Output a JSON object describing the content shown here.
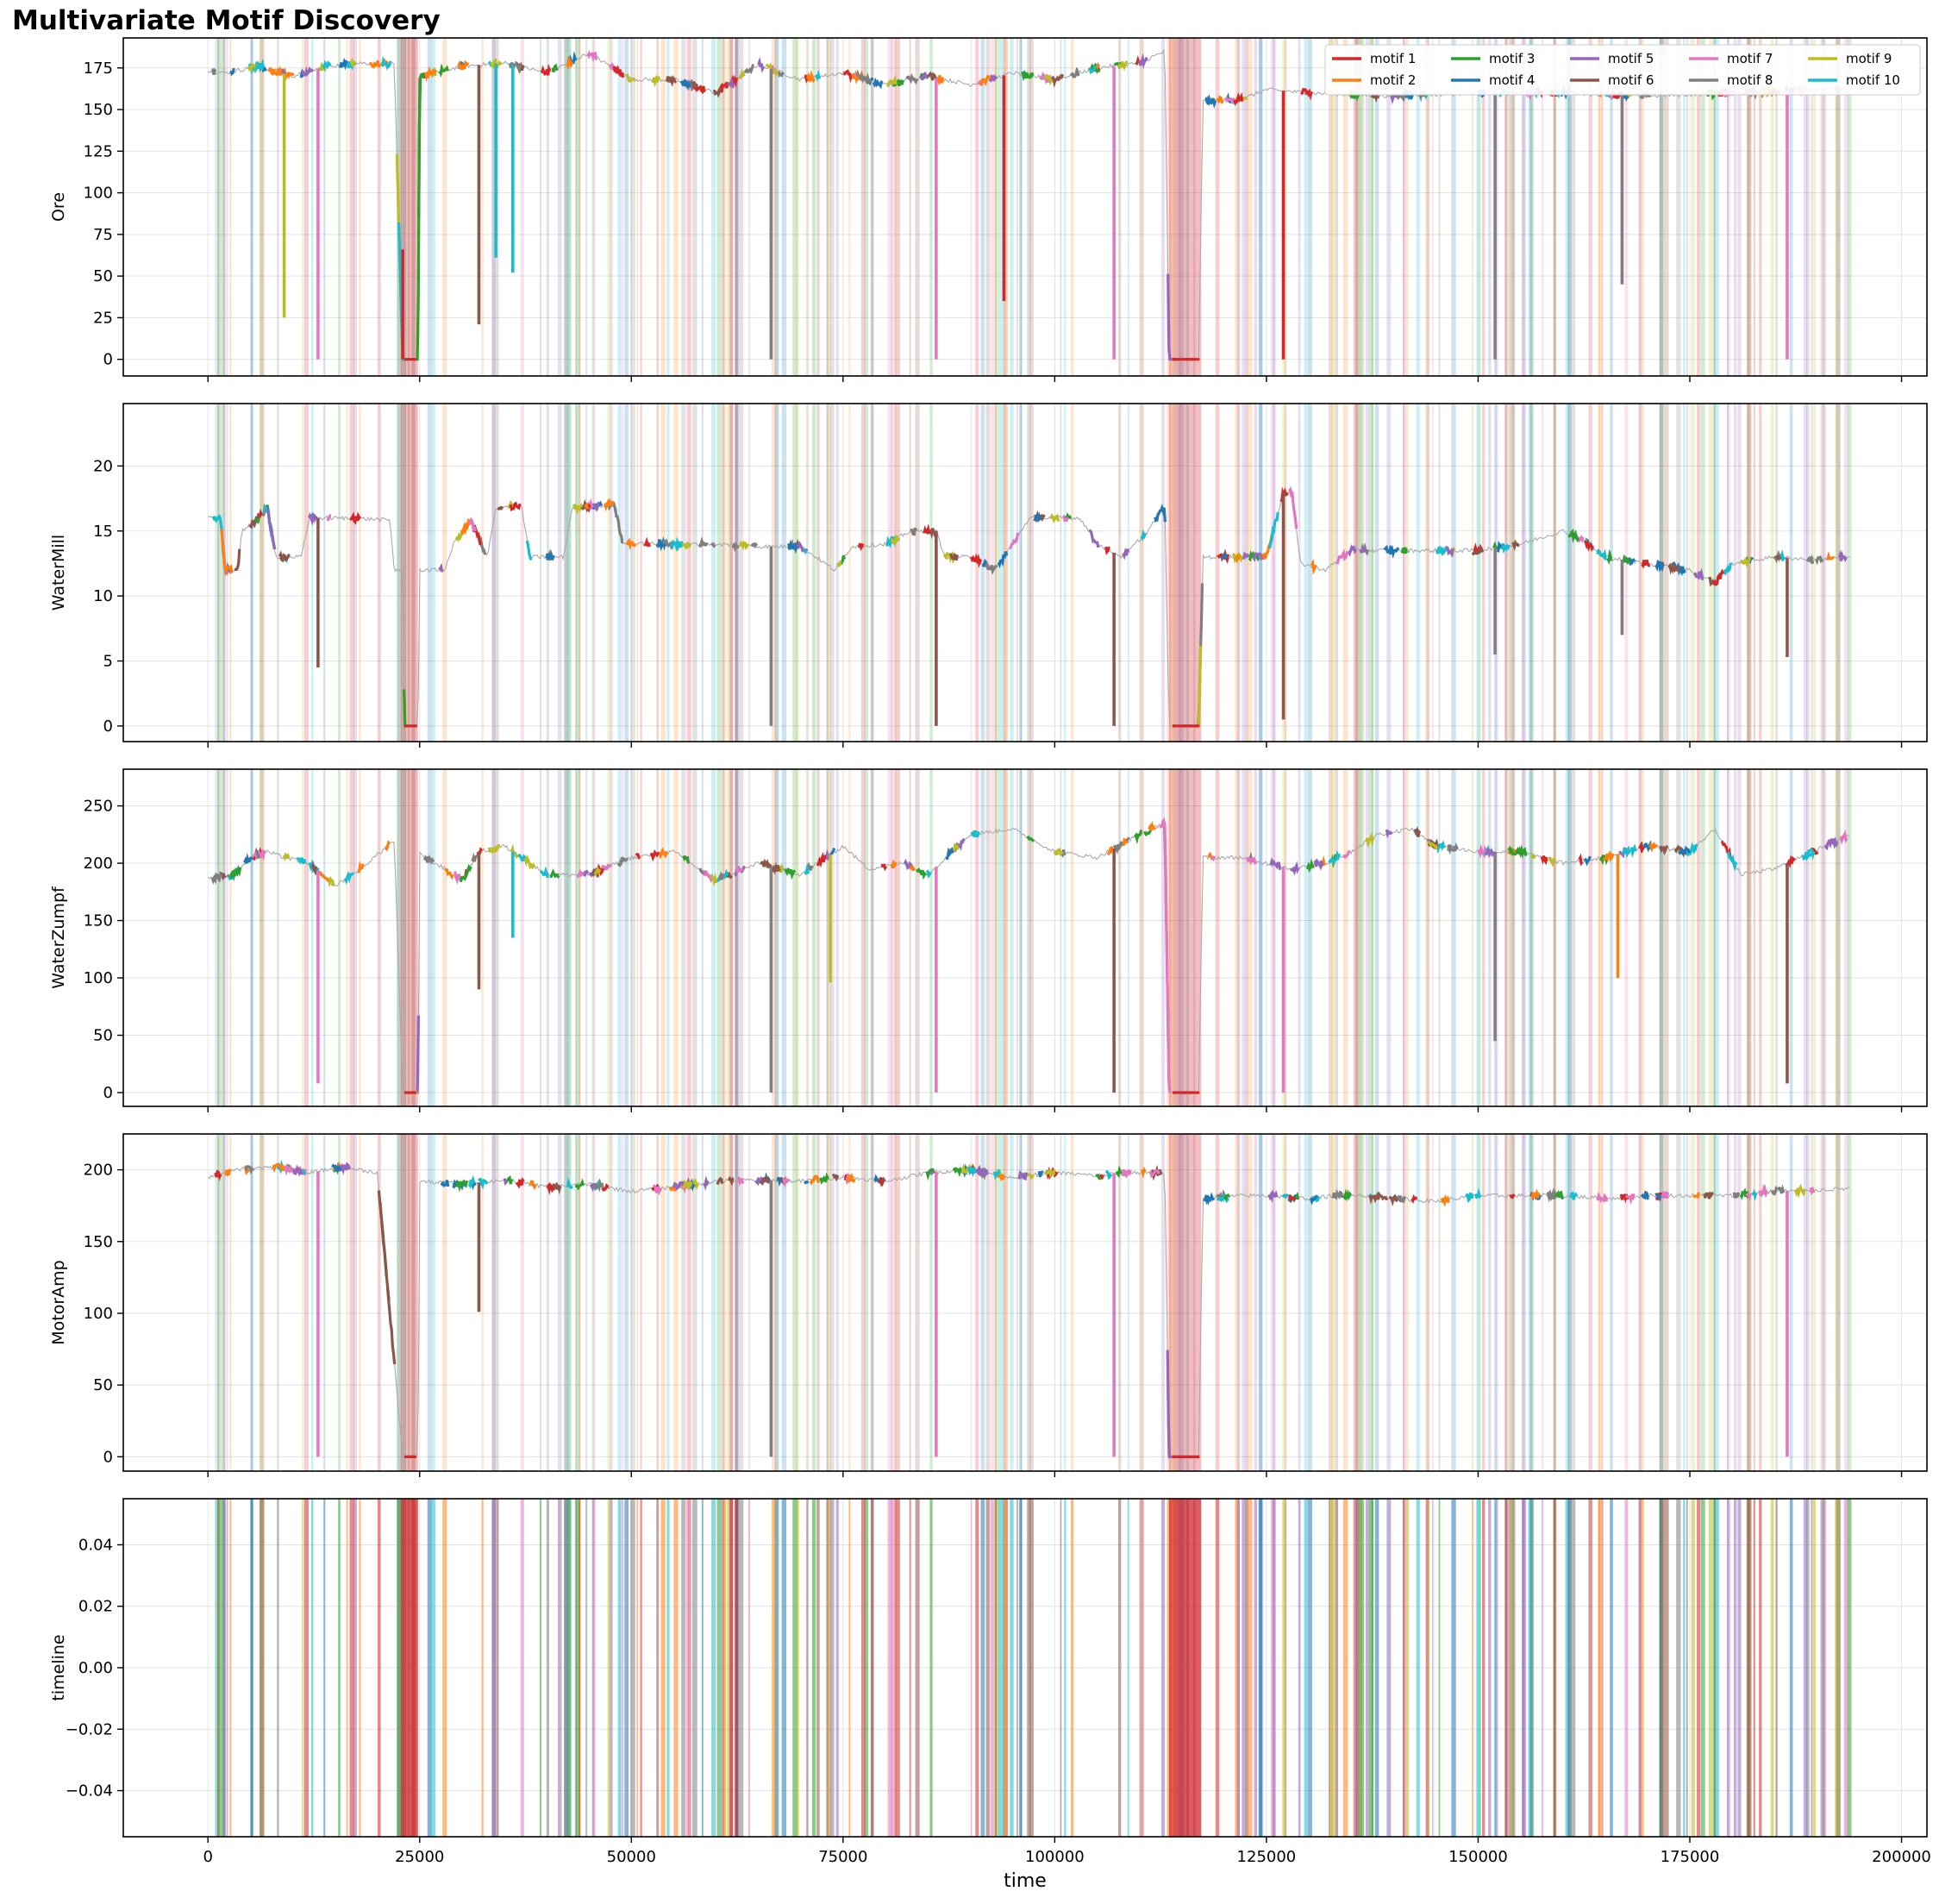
{
  "title": "Multivariate Motif Discovery",
  "motif_colors": [
    "#d62728",
    "#ff7f0e",
    "#2ca02c",
    "#1f77b4",
    "#9467bd",
    "#8c564b",
    "#e377c2",
    "#7f7f7f",
    "#bcbd22",
    "#17becf"
  ],
  "background_series_color": "#aaaaaa",
  "chart_data": {
    "type": "line",
    "grid": true,
    "legend": {
      "placement": "top-right",
      "columns": 5,
      "entries": [
        "motif 1",
        "motif 2",
        "motif 3",
        "motif 4",
        "motif 5",
        "motif 6",
        "motif 7",
        "motif 8",
        "motif 9",
        "motif 10"
      ]
    },
    "xlabel": "time",
    "xlim": [
      -10000,
      203000
    ],
    "xticks": [
      0,
      25000,
      50000,
      75000,
      100000,
      125000,
      150000,
      175000,
      200000
    ],
    "highlighted_regions": [
      {
        "motif": "motif 1",
        "x": [
          22800,
          24800
        ]
      },
      {
        "motif": "motif 1",
        "x": [
          113500,
          117300
        ]
      }
    ],
    "panels": [
      {
        "ylabel": "Ore",
        "ylim": [
          -10,
          193
        ],
        "yticks": [
          0,
          25,
          50,
          75,
          100,
          125,
          150,
          175
        ],
        "baseline": [
          [
            0,
            173
          ],
          [
            2000,
            172
          ],
          [
            6000,
            176
          ],
          [
            10000,
            170
          ],
          [
            14000,
            176
          ],
          [
            18000,
            178
          ],
          [
            22000,
            177
          ],
          [
            23000,
            0
          ],
          [
            24800,
            0
          ],
          [
            25000,
            170
          ],
          [
            30000,
            176
          ],
          [
            35000,
            178
          ],
          [
            40000,
            172
          ],
          [
            45000,
            184
          ],
          [
            50000,
            168
          ],
          [
            55000,
            168
          ],
          [
            60000,
            160
          ],
          [
            65000,
            177
          ],
          [
            70000,
            168
          ],
          [
            75000,
            172
          ],
          [
            80000,
            165
          ],
          [
            85000,
            170
          ],
          [
            90000,
            165
          ],
          [
            95000,
            172
          ],
          [
            100000,
            168
          ],
          [
            105000,
            175
          ],
          [
            110000,
            178
          ],
          [
            113000,
            185
          ],
          [
            113500,
            0
          ],
          [
            117000,
            0
          ],
          [
            117500,
            155
          ],
          [
            122000,
            156
          ],
          [
            125000,
            162
          ],
          [
            130000,
            160
          ],
          [
            140000,
            158
          ],
          [
            150000,
            160
          ],
          [
            160000,
            160
          ],
          [
            170000,
            158
          ],
          [
            180000,
            160
          ],
          [
            190000,
            162
          ],
          [
            194000,
            162
          ]
        ],
        "dips": [
          {
            "x": 9000,
            "min": 25,
            "motif": "motif 9"
          },
          {
            "x": 13000,
            "min": 0,
            "motif": "motif 7"
          },
          {
            "x": 23000,
            "min": 66,
            "motif": "motif 1"
          },
          {
            "x": 23800,
            "min": 0,
            "motif": "motif 5"
          },
          {
            "x": 32000,
            "min": 21,
            "motif": "motif 6"
          },
          {
            "x": 34000,
            "min": 61,
            "motif": "motif 10"
          },
          {
            "x": 36000,
            "min": 52,
            "motif": "motif 10"
          },
          {
            "x": 66500,
            "min": 0,
            "motif": "motif 8"
          },
          {
            "x": 86000,
            "min": 0,
            "motif": "motif 7"
          },
          {
            "x": 94000,
            "min": 35,
            "motif": "motif 1"
          },
          {
            "x": 107000,
            "min": 0,
            "motif": "motif 7"
          },
          {
            "x": 127000,
            "min": 0,
            "motif": "motif 1"
          },
          {
            "x": 152000,
            "min": 0,
            "motif": "motif 8"
          },
          {
            "x": 167000,
            "min": 45,
            "motif": "motif 8"
          },
          {
            "x": 186500,
            "min": 0,
            "motif": "motif 7"
          }
        ]
      },
      {
        "ylabel": "WaterMill",
        "ylim": [
          -1.2,
          24.8
        ],
        "yticks": [
          0,
          5,
          10,
          15,
          20
        ],
        "baseline": [
          [
            0,
            16
          ],
          [
            1500,
            16
          ],
          [
            2000,
            12
          ],
          [
            3500,
            12
          ],
          [
            4000,
            15
          ],
          [
            6000,
            16
          ],
          [
            7000,
            16.8
          ],
          [
            8000,
            13
          ],
          [
            10000,
            13
          ],
          [
            11000,
            13
          ],
          [
            12000,
            16
          ],
          [
            15000,
            16
          ],
          [
            20000,
            15.9
          ],
          [
            21500,
            15.8
          ],
          [
            22000,
            12
          ],
          [
            23000,
            12
          ],
          [
            23200,
            0
          ],
          [
            24800,
            0
          ],
          [
            25000,
            12
          ],
          [
            28000,
            12
          ],
          [
            29000,
            14
          ],
          [
            31000,
            15.8
          ],
          [
            33000,
            13
          ],
          [
            34000,
            16.8
          ],
          [
            37000,
            17
          ],
          [
            38000,
            13
          ],
          [
            42000,
            13
          ],
          [
            43000,
            16.8
          ],
          [
            48000,
            17
          ],
          [
            49000,
            14
          ],
          [
            55000,
            14
          ],
          [
            60000,
            14
          ],
          [
            65000,
            13.8
          ],
          [
            70000,
            13.8
          ],
          [
            74000,
            12
          ],
          [
            76000,
            13.8
          ],
          [
            80000,
            14
          ],
          [
            83000,
            15
          ],
          [
            86000,
            15
          ],
          [
            87000,
            13
          ],
          [
            90000,
            13
          ],
          [
            93000,
            12
          ],
          [
            96000,
            15
          ],
          [
            97000,
            16
          ],
          [
            103000,
            16
          ],
          [
            105000,
            14
          ],
          [
            108000,
            13
          ],
          [
            111000,
            15
          ],
          [
            113000,
            17
          ],
          [
            113500,
            0
          ],
          [
            117000,
            0
          ],
          [
            117500,
            13
          ],
          [
            125000,
            13
          ],
          [
            127000,
            18
          ],
          [
            128000,
            18
          ],
          [
            129000,
            12.5
          ],
          [
            132000,
            12
          ],
          [
            135000,
            13.5
          ],
          [
            140000,
            13.5
          ],
          [
            150000,
            13.5
          ],
          [
            155000,
            14
          ],
          [
            160000,
            15
          ],
          [
            162000,
            14.5
          ],
          [
            165000,
            13
          ],
          [
            170000,
            12.5
          ],
          [
            175000,
            12
          ],
          [
            178000,
            11
          ],
          [
            180000,
            12.5
          ],
          [
            185000,
            13
          ],
          [
            190000,
            12.8
          ],
          [
            194000,
            13
          ]
        ],
        "dips": [
          {
            "x": 13000,
            "min": 4.5,
            "motif": "motif 6"
          },
          {
            "x": 66500,
            "min": 0,
            "motif": "motif 8"
          },
          {
            "x": 86000,
            "min": 0,
            "motif": "motif 6"
          },
          {
            "x": 107000,
            "min": 0,
            "motif": "motif 6"
          },
          {
            "x": 127000,
            "min": 0.5,
            "motif": "motif 6"
          },
          {
            "x": 152000,
            "min": 5.5,
            "motif": "motif 8"
          },
          {
            "x": 167000,
            "min": 7,
            "motif": "motif 8"
          },
          {
            "x": 186500,
            "min": 5.3,
            "motif": "motif 6"
          }
        ]
      },
      {
        "ylabel": "WaterZumpf",
        "ylim": [
          -12,
          282
        ],
        "yticks": [
          0,
          50,
          100,
          150,
          200,
          250
        ],
        "baseline": [
          [
            0,
            187
          ],
          [
            3000,
            190
          ],
          [
            5000,
            205
          ],
          [
            7000,
            210
          ],
          [
            9000,
            205
          ],
          [
            12000,
            200
          ],
          [
            15000,
            180
          ],
          [
            18000,
            195
          ],
          [
            22000,
            220
          ],
          [
            23000,
            0
          ],
          [
            24800,
            0
          ],
          [
            25000,
            208
          ],
          [
            28000,
            195
          ],
          [
            30000,
            185
          ],
          [
            32000,
            210
          ],
          [
            35000,
            215
          ],
          [
            40000,
            190
          ],
          [
            45000,
            190
          ],
          [
            50000,
            205
          ],
          [
            55000,
            210
          ],
          [
            60000,
            185
          ],
          [
            65000,
            200
          ],
          [
            70000,
            190
          ],
          [
            75000,
            215
          ],
          [
            78000,
            195
          ],
          [
            82000,
            200
          ],
          [
            85000,
            190
          ],
          [
            90000,
            225
          ],
          [
            95000,
            230
          ],
          [
            100000,
            210
          ],
          [
            105000,
            205
          ],
          [
            110000,
            225
          ],
          [
            113000,
            235
          ],
          [
            113500,
            0
          ],
          [
            117000,
            0
          ],
          [
            117500,
            205
          ],
          [
            122000,
            205
          ],
          [
            125000,
            200
          ],
          [
            128000,
            195
          ],
          [
            132000,
            200
          ],
          [
            135000,
            210
          ],
          [
            138000,
            225
          ],
          [
            142000,
            230
          ],
          [
            145000,
            215
          ],
          [
            150000,
            210
          ],
          [
            155000,
            210
          ],
          [
            160000,
            200
          ],
          [
            165000,
            205
          ],
          [
            170000,
            215
          ],
          [
            175000,
            210
          ],
          [
            178000,
            230
          ],
          [
            181000,
            190
          ],
          [
            185000,
            195
          ],
          [
            188000,
            205
          ],
          [
            194000,
            225
          ]
        ],
        "dips": [
          {
            "x": 13000,
            "min": 8,
            "motif": "motif 7"
          },
          {
            "x": 32000,
            "min": 90,
            "motif": "motif 6"
          },
          {
            "x": 36000,
            "min": 135,
            "motif": "motif 10"
          },
          {
            "x": 66500,
            "min": 0,
            "motif": "motif 8"
          },
          {
            "x": 73500,
            "min": 96,
            "motif": "motif 9"
          },
          {
            "x": 86000,
            "min": 0,
            "motif": "motif 7"
          },
          {
            "x": 107000,
            "min": 0,
            "motif": "motif 6"
          },
          {
            "x": 127000,
            "min": 0,
            "motif": "motif 7"
          },
          {
            "x": 152000,
            "min": 45,
            "motif": "motif 8"
          },
          {
            "x": 166500,
            "min": 100,
            "motif": "motif 2"
          },
          {
            "x": 186500,
            "min": 8,
            "motif": "motif 6"
          }
        ]
      },
      {
        "ylabel": "MotorAmp",
        "ylim": [
          -10,
          225
        ],
        "yticks": [
          0,
          50,
          100,
          150,
          200
        ],
        "baseline": [
          [
            0,
            195
          ],
          [
            3000,
            200
          ],
          [
            8000,
            202
          ],
          [
            12000,
            198
          ],
          [
            16000,
            202
          ],
          [
            20000,
            198
          ],
          [
            23000,
            0
          ],
          [
            24800,
            0
          ],
          [
            25000,
            192
          ],
          [
            30000,
            190
          ],
          [
            35000,
            193
          ],
          [
            40000,
            188
          ],
          [
            45000,
            190
          ],
          [
            50000,
            185
          ],
          [
            55000,
            188
          ],
          [
            60000,
            192
          ],
          [
            65000,
            193
          ],
          [
            70000,
            192
          ],
          [
            75000,
            195
          ],
          [
            80000,
            192
          ],
          [
            85000,
            198
          ],
          [
            90000,
            200
          ],
          [
            95000,
            195
          ],
          [
            100000,
            198
          ],
          [
            105000,
            196
          ],
          [
            108000,
            198
          ],
          [
            113000,
            198
          ],
          [
            113500,
            0
          ],
          [
            117000,
            0
          ],
          [
            117500,
            180
          ],
          [
            122000,
            182
          ],
          [
            125000,
            182
          ],
          [
            130000,
            180
          ],
          [
            135000,
            183
          ],
          [
            140000,
            180
          ],
          [
            145000,
            178
          ],
          [
            150000,
            182
          ],
          [
            155000,
            182
          ],
          [
            160000,
            182
          ],
          [
            165000,
            180
          ],
          [
            170000,
            182
          ],
          [
            175000,
            182
          ],
          [
            180000,
            182
          ],
          [
            185000,
            185
          ],
          [
            190000,
            186
          ],
          [
            194000,
            187
          ]
        ],
        "dips": [
          {
            "x": 13000,
            "min": 0,
            "motif": "motif 7"
          },
          {
            "x": 32000,
            "min": 101,
            "motif": "motif 6"
          },
          {
            "x": 66500,
            "min": 0,
            "motif": "motif 8"
          },
          {
            "x": 86000,
            "min": 0,
            "motif": "motif 7"
          },
          {
            "x": 107000,
            "min": 0,
            "motif": "motif 7"
          },
          {
            "x": 186500,
            "min": 0,
            "motif": "motif 7"
          }
        ]
      },
      {
        "ylabel": "timeline",
        "ylim": [
          -0.055,
          0.055
        ],
        "yticks": [
          -0.04,
          -0.02,
          0.0,
          0.02,
          0.04
        ],
        "ytick_labels": [
          "−0.04",
          "−0.02",
          "0.00",
          "0.02",
          "0.04"
        ]
      }
    ]
  }
}
